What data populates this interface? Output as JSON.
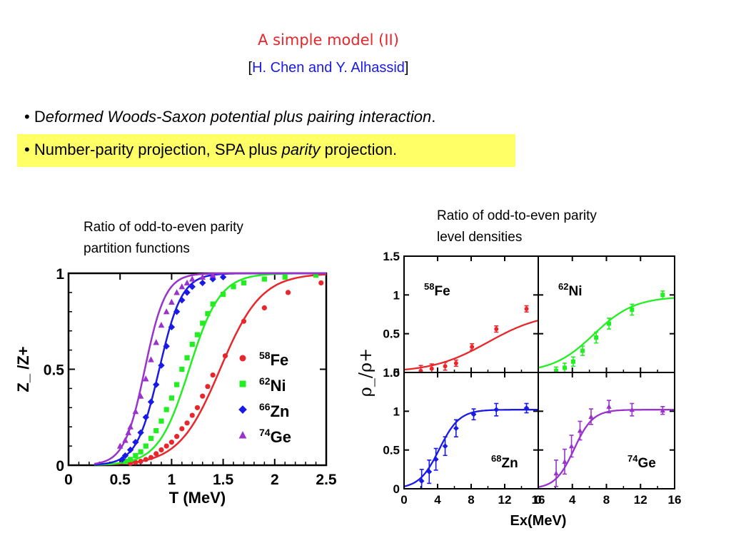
{
  "slide": {
    "title": "A simple model (II)",
    "authors_open": "[",
    "authors": "H. Chen and Y. Alhassid",
    "authors_close": "]",
    "bullet1_lead": "• D",
    "bullet1_italic": "eformed Woods-Saxon potential plus pairing interaction",
    "bullet1_end": ".",
    "bullet2_pre": "• Number-parity projection, SPA plus ",
    "bullet2_italic": "parity",
    "bullet2_post": " projection.",
    "caption_left_line1": "Ratio of odd-to-even parity",
    "caption_left_line2": "partition functions",
    "caption_right_line1": "Ratio of odd-to-even parity",
    "caption_right_line2": "level densities",
    "colors": {
      "title": "#e8262b",
      "authors": "#1a1ae6",
      "highlight": "#ffff66",
      "Fe": "#e8262b",
      "Ni": "#22ee22",
      "Zn": "#1a1ae6",
      "Ge": "#9933cc"
    }
  },
  "chart_data": [
    {
      "type": "scatter",
      "title": "",
      "xlabel": "T (MeV)",
      "ylabel": "Z_ /Z+",
      "xlim": [
        0,
        2.5
      ],
      "ylim": [
        0,
        1
      ],
      "xticks": [
        "0",
        "0.5",
        "1",
        "1.5",
        "2",
        "2.5"
      ],
      "yticks": [
        "0",
        "0.5",
        "1"
      ],
      "legend_position": "right",
      "series": [
        {
          "name": "58Fe",
          "mass": "58",
          "element": "Fe",
          "color": "#e8262b",
          "marker": "circle",
          "curve_mid": 1.47,
          "curve_width": 0.2,
          "points": [
            [
              0.6,
              0.01
            ],
            [
              0.65,
              0.015
            ],
            [
              0.7,
              0.02
            ],
            [
              0.75,
              0.03
            ],
            [
              0.8,
              0.04
            ],
            [
              0.85,
              0.06
            ],
            [
              0.9,
              0.08
            ],
            [
              0.95,
              0.1
            ],
            [
              1.0,
              0.12
            ],
            [
              1.05,
              0.15
            ],
            [
              1.1,
              0.19
            ],
            [
              1.15,
              0.22
            ],
            [
              1.2,
              0.26
            ],
            [
              1.25,
              0.3
            ],
            [
              1.3,
              0.36
            ],
            [
              1.35,
              0.41
            ],
            [
              1.4,
              0.47
            ],
            [
              1.52,
              0.57
            ],
            [
              1.7,
              0.75
            ],
            [
              1.9,
              0.82
            ],
            [
              2.13,
              0.9
            ],
            [
              2.45,
              0.95
            ]
          ]
        },
        {
          "name": "62Ni",
          "mass": "62",
          "element": "Ni",
          "color": "#22ee22",
          "marker": "square",
          "curve_mid": 1.17,
          "curve_width": 0.15,
          "points": [
            [
              0.55,
              0.02
            ],
            [
              0.6,
              0.03
            ],
            [
              0.65,
              0.05
            ],
            [
              0.7,
              0.07
            ],
            [
              0.75,
              0.1
            ],
            [
              0.8,
              0.14
            ],
            [
              0.85,
              0.18
            ],
            [
              0.9,
              0.23
            ],
            [
              0.95,
              0.29
            ],
            [
              1.0,
              0.35
            ],
            [
              1.05,
              0.42
            ],
            [
              1.1,
              0.5
            ],
            [
              1.15,
              0.56
            ],
            [
              1.2,
              0.63
            ],
            [
              1.25,
              0.68
            ],
            [
              1.3,
              0.74
            ],
            [
              1.35,
              0.79
            ],
            [
              1.4,
              0.84
            ],
            [
              1.5,
              0.89
            ],
            [
              1.6,
              0.93
            ],
            [
              1.7,
              0.95
            ],
            [
              1.9,
              0.97
            ],
            [
              2.1,
              0.98
            ],
            [
              2.4,
              0.99
            ]
          ]
        },
        {
          "name": "66Zn",
          "mass": "66",
          "element": "Zn",
          "color": "#1a1ae6",
          "marker": "diamond",
          "curve_mid": 0.88,
          "curve_width": 0.11,
          "points": [
            [
              0.52,
              0.03
            ],
            [
              0.55,
              0.05
            ],
            [
              0.6,
              0.08
            ],
            [
              0.65,
              0.12
            ],
            [
              0.7,
              0.17
            ],
            [
              0.75,
              0.25
            ],
            [
              0.8,
              0.33
            ],
            [
              0.85,
              0.42
            ],
            [
              0.9,
              0.52
            ],
            [
              0.95,
              0.62
            ],
            [
              1.0,
              0.72
            ],
            [
              1.05,
              0.8
            ],
            [
              1.1,
              0.86
            ],
            [
              1.15,
              0.9
            ],
            [
              1.2,
              0.93
            ],
            [
              1.3,
              0.95
            ],
            [
              1.4,
              0.97
            ],
            [
              1.5,
              0.98
            ]
          ]
        },
        {
          "name": "74Ge",
          "mass": "74",
          "element": "Ge",
          "color": "#9933cc",
          "marker": "triangle",
          "curve_mid": 0.74,
          "curve_width": 0.1,
          "points": [
            [
              0.5,
              0.1
            ],
            [
              0.55,
              0.13
            ],
            [
              0.58,
              0.17
            ],
            [
              0.6,
              0.2
            ],
            [
              0.65,
              0.28
            ],
            [
              0.7,
              0.36
            ],
            [
              0.75,
              0.45
            ],
            [
              0.8,
              0.55
            ],
            [
              0.85,
              0.64
            ],
            [
              0.9,
              0.73
            ],
            [
              0.95,
              0.8
            ],
            [
              1.0,
              0.85
            ],
            [
              1.05,
              0.9
            ],
            [
              1.1,
              0.93
            ],
            [
              1.15,
              0.95
            ],
            [
              1.2,
              0.97
            ],
            [
              1.3,
              0.98
            ],
            [
              1.4,
              0.99
            ]
          ]
        }
      ]
    },
    {
      "type": "scatter",
      "title": "",
      "xlabel": "Ex(MeV)",
      "ylabel": "ρ_/ρ+",
      "xlim": [
        0,
        16
      ],
      "ylim": [
        0,
        1.5
      ],
      "xticks": [
        "0",
        "4",
        "8",
        "12",
        "16"
      ],
      "yticks": [
        "0",
        "0.5",
        "1",
        "1.5"
      ],
      "panels": [
        {
          "nucleus": "58Fe",
          "mass": "58",
          "element": "Fe",
          "label_position": "top-left",
          "color": "#e8262b",
          "marker": "circle",
          "curve": {
            "A": 0.78,
            "mid": 10.0,
            "width": 3.3
          },
          "points": [
            [
              2.0,
              0.02,
              0.07
            ],
            [
              3.3,
              0.05,
              0.06
            ],
            [
              4.9,
              0.08,
              0.05
            ],
            [
              6.2,
              0.12,
              0.04
            ],
            [
              8.1,
              0.33,
              0.04
            ],
            [
              11.0,
              0.56,
              0.04
            ],
            [
              14.6,
              0.82,
              0.04
            ]
          ]
        },
        {
          "nucleus": "62Ni",
          "mass": "62",
          "element": "Ni",
          "label_position": "top-left",
          "color": "#22ee22",
          "marker": "square",
          "curve": {
            "A": 0.98,
            "mid": 6.5,
            "width": 2.4
          },
          "points": [
            [
              2.1,
              0.02,
              0.05
            ],
            [
              3.1,
              0.06,
              0.06
            ],
            [
              4.1,
              0.14,
              0.06
            ],
            [
              5.2,
              0.28,
              0.06
            ],
            [
              6.8,
              0.45,
              0.07
            ],
            [
              8.3,
              0.63,
              0.07
            ],
            [
              11.0,
              0.81,
              0.07
            ],
            [
              14.6,
              1.0,
              0.05
            ]
          ]
        },
        {
          "nucleus": "68Zn",
          "mass": "68",
          "element": "Zn",
          "label_position": "bottom-right",
          "color": "#1a1ae6",
          "marker": "diamond",
          "curve": {
            "A": 1.02,
            "mid": 4.2,
            "width": 1.2
          },
          "points": [
            [
              2.1,
              0.1,
              0.15
            ],
            [
              3.0,
              0.22,
              0.15
            ],
            [
              3.8,
              0.38,
              0.14
            ],
            [
              4.9,
              0.55,
              0.12
            ],
            [
              6.2,
              0.78,
              0.11
            ],
            [
              8.3,
              0.96,
              0.07
            ],
            [
              11.0,
              1.02,
              0.08
            ],
            [
              14.6,
              1.04,
              0.06
            ]
          ]
        },
        {
          "nucleus": "74Ge",
          "mass": "74",
          "element": "Ge",
          "label_position": "bottom-right",
          "color": "#9933cc",
          "marker": "triangle",
          "curve": {
            "A": 1.02,
            "mid": 4.2,
            "width": 1.1
          },
          "points": [
            [
              2.1,
              0.2,
              0.17
            ],
            [
              3.1,
              0.35,
              0.16
            ],
            [
              3.9,
              0.55,
              0.14
            ],
            [
              4.9,
              0.75,
              0.12
            ],
            [
              6.2,
              0.93,
              0.1
            ],
            [
              8.3,
              1.06,
              0.08
            ],
            [
              11.0,
              1.02,
              0.08
            ],
            [
              14.6,
              1.01,
              0.05
            ]
          ]
        }
      ]
    }
  ]
}
